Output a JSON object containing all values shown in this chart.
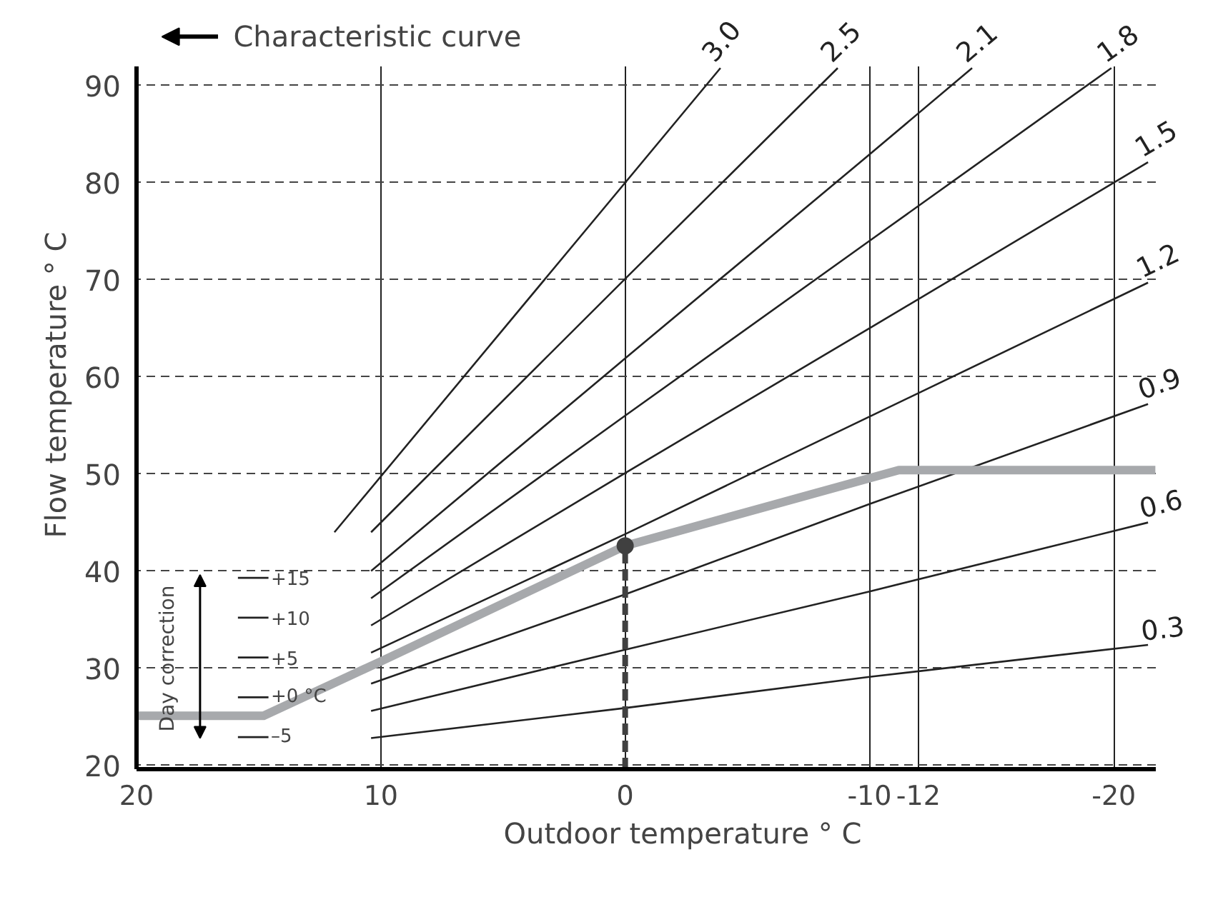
{
  "chart_data": {
    "type": "line",
    "title": "Characteristic curve",
    "xlabel": "Outdoor temperature ° C",
    "ylabel": "Flow temperature ° C",
    "xlim": [
      20,
      -21.7
    ],
    "ylim": [
      19.6,
      92
    ],
    "xticks": [
      20,
      10,
      0,
      -10,
      -12,
      -20
    ],
    "yticks": [
      20,
      30,
      40,
      50,
      60,
      70,
      80,
      90
    ],
    "grid": true,
    "legend": false,
    "series": [
      {
        "name": "3.0",
        "color": "#222222",
        "x": [
          11.9,
          0,
          -3.9
        ],
        "values": [
          44.0,
          80.0,
          91.8
        ]
      },
      {
        "name": "2.5",
        "color": "#222222",
        "x": [
          10.4,
          0,
          -8.7
        ],
        "values": [
          44.0,
          70.1,
          91.8
        ]
      },
      {
        "name": "2.1",
        "color": "#222222",
        "x": [
          10.4,
          0,
          -10,
          -14.2
        ],
        "values": [
          40.0,
          61.9,
          82.9,
          91.8
        ]
      },
      {
        "name": "1.8",
        "color": "#222222",
        "x": [
          10.4,
          0,
          -10,
          -19.9
        ],
        "values": [
          37.2,
          56.0,
          74.0,
          91.8
        ]
      },
      {
        "name": "1.5",
        "color": "#222222",
        "x": [
          10.4,
          0,
          -10,
          -21.4
        ],
        "values": [
          34.4,
          50.1,
          65.0,
          82.1
        ]
      },
      {
        "name": "1.2",
        "color": "#222222",
        "x": [
          10.4,
          0,
          -10,
          -21.4
        ],
        "values": [
          31.6,
          43.8,
          55.9,
          69.7
        ]
      },
      {
        "name": "0.9",
        "color": "#222222",
        "x": [
          10.4,
          0,
          -10,
          -21.4
        ],
        "values": [
          28.4,
          37.6,
          46.9,
          57.2
        ]
      },
      {
        "name": "0.6",
        "color": "#222222",
        "x": [
          10.4,
          0,
          -10,
          -21.4
        ],
        "values": [
          25.6,
          31.9,
          37.9,
          45.0
        ]
      },
      {
        "name": "0.3",
        "color": "#222222",
        "x": [
          10.4,
          0,
          -10,
          -21.4
        ],
        "values": [
          22.8,
          25.9,
          29.1,
          32.4
        ]
      },
      {
        "color": "#a7a9ac",
        "x": [
          20,
          14.8,
          10,
          0,
          -11.2,
          -21.7
        ],
        "values": [
          25.1,
          25.1,
          30.7,
          42.6,
          50.4,
          50.4
        ]
      },
      {
        "color": "#404040",
        "line_style": "dashed",
        "x": [
          0,
          0
        ],
        "values": [
          19.6,
          42.6
        ]
      },
      {
        "type": "scatter",
        "marker": "circle",
        "color": "#404040",
        "x": [
          0
        ],
        "values": [
          42.6
        ]
      }
    ],
    "annotations": [
      "Day correction",
      "+15",
      "+10",
      "+5",
      "+0 °C",
      "–5"
    ]
  }
}
